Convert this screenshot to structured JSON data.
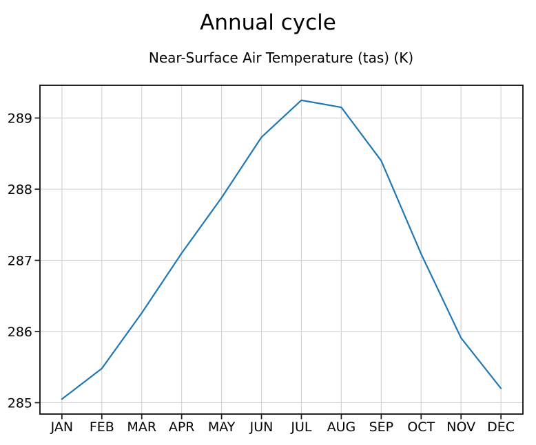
{
  "figure": {
    "title": "Annual cycle"
  },
  "chart_data": {
    "type": "line",
    "title": "Annual cycle",
    "subtitle": "Near-Surface Air Temperature (tas) (K)",
    "categories": [
      "JAN",
      "FEB",
      "MAR",
      "APR",
      "MAY",
      "JUN",
      "JUL",
      "AUG",
      "SEP",
      "OCT",
      "NOV",
      "DEC"
    ],
    "series": [
      {
        "name": "tas",
        "values": [
          285.05,
          285.48,
          286.26,
          287.1,
          287.88,
          288.73,
          289.25,
          289.15,
          288.4,
          287.09,
          285.91,
          285.2
        ]
      }
    ],
    "xlabel": "",
    "ylabel": "",
    "yticks": [
      285,
      286,
      287,
      288,
      289
    ],
    "ylim": [
      284.84,
      289.46
    ],
    "grid": true,
    "legend_position": "none",
    "line_color": "#1f77b4",
    "grid_color": "#d4d4d4",
    "spine_color": "#1a1a1a",
    "tick_label_color": "#000000"
  }
}
